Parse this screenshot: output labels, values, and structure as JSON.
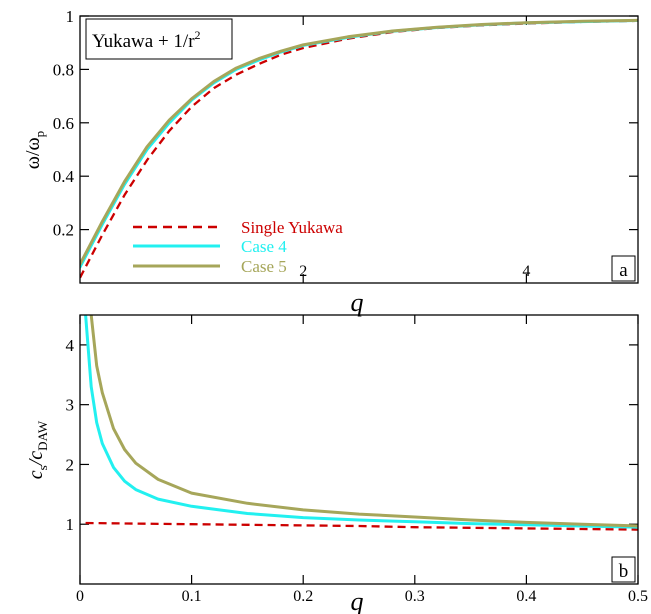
{
  "colors": {
    "single_yukawa": "#cc0000",
    "case4": "#22f0f0",
    "case5": "#a6a65a",
    "axis": "#000000",
    "background": "#ffffff"
  },
  "chart_data": [
    {
      "type": "line",
      "panel_label": "a",
      "annotation": "Yukawa + 1/r",
      "annotation_superscript": "2",
      "xlabel": "q",
      "ylabel": "ω/ω",
      "ylabel_subscript": "p",
      "xlim": [
        0,
        5
      ],
      "ylim": [
        0,
        1
      ],
      "xticks": [
        2,
        4
      ],
      "yticks": [
        0.2,
        0.4,
        0.6,
        0.8,
        1
      ],
      "ytick_labels": [
        "0.2",
        "0.4",
        "0.6",
        "0.8",
        "1"
      ],
      "grid": false,
      "legend_position": "bottom-left",
      "series": [
        {
          "name": "Single Yukawa",
          "style": "dashed",
          "color_key": "single_yukawa",
          "x": [
            0,
            0.2,
            0.4,
            0.6,
            0.8,
            1.0,
            1.2,
            1.4,
            1.6,
            1.8,
            2.0,
            2.4,
            2.8,
            3.2,
            3.6,
            4.0,
            4.5,
            5.0
          ],
          "y": [
            0.02,
            0.18,
            0.33,
            0.46,
            0.57,
            0.66,
            0.73,
            0.78,
            0.82,
            0.855,
            0.88,
            0.915,
            0.94,
            0.955,
            0.965,
            0.972,
            0.978,
            0.982
          ]
        },
        {
          "name": "Case 4",
          "style": "solid",
          "color_key": "case4",
          "x": [
            0,
            0.2,
            0.4,
            0.6,
            0.8,
            1.0,
            1.2,
            1.4,
            1.6,
            1.8,
            2.0,
            2.4,
            2.8,
            3.2,
            3.6,
            4.0,
            4.5,
            5.0
          ],
          "y": [
            0.06,
            0.22,
            0.37,
            0.5,
            0.6,
            0.685,
            0.75,
            0.8,
            0.835,
            0.865,
            0.89,
            0.92,
            0.943,
            0.957,
            0.967,
            0.974,
            0.979,
            0.983
          ]
        },
        {
          "name": "Case 5",
          "style": "solid",
          "color_key": "case5",
          "x": [
            0,
            0.2,
            0.4,
            0.6,
            0.8,
            1.0,
            1.2,
            1.4,
            1.6,
            1.8,
            2.0,
            2.4,
            2.8,
            3.2,
            3.6,
            4.0,
            4.5,
            5.0
          ],
          "y": [
            0.07,
            0.23,
            0.38,
            0.51,
            0.61,
            0.69,
            0.755,
            0.805,
            0.84,
            0.868,
            0.892,
            0.922,
            0.944,
            0.958,
            0.968,
            0.975,
            0.98,
            0.984
          ]
        }
      ]
    },
    {
      "type": "line",
      "panel_label": "b",
      "xlabel": "q",
      "ylabel": "c",
      "ylabel_sub1": "s",
      "ylabel_mid": "/c",
      "ylabel_sub2": "DAW",
      "xlim": [
        0,
        0.5
      ],
      "ylim": [
        0,
        4.5
      ],
      "xticks": [
        0,
        0.1,
        0.2,
        0.3,
        0.4,
        0.5
      ],
      "xtick_labels": [
        "0",
        "0.1",
        "0.2",
        "0.3",
        "0.4",
        "0.5"
      ],
      "yticks": [
        1,
        2,
        3,
        4
      ],
      "ytick_labels": [
        "1",
        "2",
        "3",
        "4"
      ],
      "grid": false,
      "series": [
        {
          "name": "Single Yukawa",
          "style": "dashed",
          "color_key": "single_yukawa",
          "x": [
            0.005,
            0.05,
            0.1,
            0.15,
            0.2,
            0.25,
            0.3,
            0.35,
            0.4,
            0.45,
            0.5
          ],
          "y": [
            1.02,
            1.01,
            1.0,
            0.99,
            0.98,
            0.97,
            0.95,
            0.94,
            0.93,
            0.92,
            0.91
          ]
        },
        {
          "name": "Case 4",
          "style": "solid",
          "color_key": "case4",
          "x": [
            0.005,
            0.01,
            0.015,
            0.02,
            0.03,
            0.04,
            0.05,
            0.07,
            0.1,
            0.15,
            0.2,
            0.25,
            0.3,
            0.35,
            0.4,
            0.45,
            0.5
          ],
          "y": [
            4.5,
            3.3,
            2.7,
            2.35,
            1.95,
            1.72,
            1.58,
            1.42,
            1.3,
            1.18,
            1.11,
            1.07,
            1.04,
            1.01,
            0.99,
            0.97,
            0.95
          ]
        },
        {
          "name": "Case 5",
          "style": "solid",
          "color_key": "case5",
          "x": [
            0.01,
            0.015,
            0.02,
            0.03,
            0.04,
            0.05,
            0.07,
            0.1,
            0.15,
            0.2,
            0.25,
            0.3,
            0.35,
            0.4,
            0.45,
            0.5
          ],
          "y": [
            4.5,
            3.65,
            3.2,
            2.6,
            2.25,
            2.02,
            1.75,
            1.52,
            1.35,
            1.24,
            1.17,
            1.12,
            1.07,
            1.03,
            1.0,
            0.97
          ]
        }
      ]
    }
  ]
}
